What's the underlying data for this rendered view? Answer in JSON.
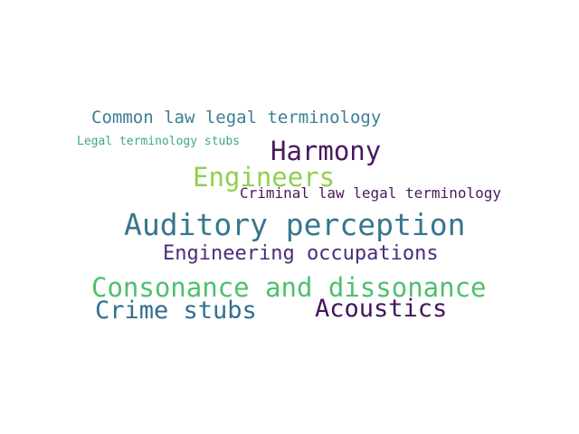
{
  "words": [
    {
      "text": "Common law legal terminology",
      "color": "#3a7f94"
    },
    {
      "text": "Legal terminology stubs",
      "color": "#3fa68e"
    },
    {
      "text": "Harmony",
      "color": "#48195e"
    },
    {
      "text": "Engineers",
      "color": "#8fd14f"
    },
    {
      "text": "Criminal law legal terminology",
      "color": "#4a1a5c"
    },
    {
      "text": "Auditory perception",
      "color": "#35768f"
    },
    {
      "text": "Engineering occupations",
      "color": "#4b2c7b"
    },
    {
      "text": "Consonance and dissonance",
      "color": "#4fc06e"
    },
    {
      "text": "Crime stubs",
      "color": "#2f6f8f"
    },
    {
      "text": "Acoustics",
      "color": "#44155c"
    }
  ]
}
